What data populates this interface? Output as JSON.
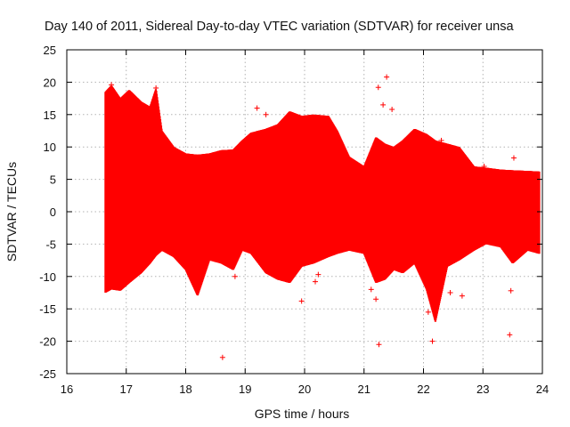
{
  "chart_data": {
    "type": "scatter",
    "title": "Day 140 of 2011, Sidereal Day-to-day VTEC variation (SDTVAR) for receiver unsa",
    "xlabel": "GPS time / hours",
    "ylabel": "SDTVAR / TECUs",
    "xlim": [
      16,
      24
    ],
    "ylim": [
      -25,
      25
    ],
    "x_ticks": [
      16,
      17,
      18,
      19,
      20,
      21,
      22,
      23,
      24
    ],
    "y_ticks": [
      -25,
      -20,
      -15,
      -10,
      -5,
      0,
      5,
      10,
      15,
      20,
      25
    ],
    "grid": true,
    "series_color": "#ff0000",
    "series": [
      {
        "name": "SDTVAR",
        "envelope": [
          [
            16.65,
            -12.5,
            18.5
          ],
          [
            16.75,
            -12.0,
            19.5
          ],
          [
            16.9,
            -12.2,
            17.5
          ],
          [
            17.05,
            -11.0,
            18.8
          ],
          [
            17.25,
            -9.5,
            17.0
          ],
          [
            17.4,
            -8.0,
            16.2
          ],
          [
            17.5,
            -6.8,
            19.0
          ],
          [
            17.6,
            -6.0,
            12.5
          ],
          [
            17.8,
            -7.0,
            10.0
          ],
          [
            18.0,
            -9.0,
            9.0
          ],
          [
            18.2,
            -13.0,
            8.8
          ],
          [
            18.4,
            -7.5,
            9.0
          ],
          [
            18.6,
            -8.0,
            9.5
          ],
          [
            18.8,
            -9.0,
            9.6
          ],
          [
            18.95,
            -6.0,
            11.0
          ],
          [
            19.1,
            -6.5,
            12.2
          ],
          [
            19.35,
            -9.5,
            12.8
          ],
          [
            19.55,
            -10.5,
            13.5
          ],
          [
            19.75,
            -11.0,
            15.5
          ],
          [
            19.95,
            -8.5,
            14.8
          ],
          [
            20.15,
            -8.0,
            15.0
          ],
          [
            20.4,
            -7.0,
            14.8
          ],
          [
            20.55,
            -6.5,
            12.5
          ],
          [
            20.75,
            -6.0,
            8.5
          ],
          [
            21.0,
            -6.5,
            7.0
          ],
          [
            21.2,
            -11.0,
            11.5
          ],
          [
            21.35,
            -10.5,
            10.5
          ],
          [
            21.5,
            -9.0,
            10.0
          ],
          [
            21.65,
            -9.5,
            11.0
          ],
          [
            21.85,
            -8.0,
            12.8
          ],
          [
            22.05,
            -12.0,
            12.0
          ],
          [
            22.2,
            -17.0,
            11.0
          ],
          [
            22.4,
            -8.5,
            10.5
          ],
          [
            22.6,
            -7.5,
            10.0
          ],
          [
            22.85,
            -6.0,
            7.0
          ],
          [
            23.05,
            -5.0,
            6.8
          ],
          [
            23.3,
            -5.5,
            6.5
          ],
          [
            23.5,
            -8.0,
            6.4
          ],
          [
            23.75,
            -6.0,
            6.3
          ],
          [
            23.95,
            -6.5,
            6.2
          ]
        ],
        "outlier_points": [
          [
            16.75,
            19.6
          ],
          [
            17.5,
            19.1
          ],
          [
            18.62,
            -22.5
          ],
          [
            18.83,
            -10.0
          ],
          [
            19.2,
            16.0
          ],
          [
            19.35,
            15.0
          ],
          [
            19.95,
            -13.8
          ],
          [
            20.18,
            -10.8
          ],
          [
            20.23,
            -9.7
          ],
          [
            21.12,
            -12.0
          ],
          [
            21.2,
            -13.5
          ],
          [
            21.25,
            -20.5
          ],
          [
            21.24,
            19.2
          ],
          [
            21.38,
            20.8
          ],
          [
            21.32,
            16.5
          ],
          [
            21.47,
            15.8
          ],
          [
            22.08,
            -15.5
          ],
          [
            22.15,
            -20.0
          ],
          [
            22.3,
            11.0
          ],
          [
            22.45,
            -12.5
          ],
          [
            22.65,
            -13.0
          ],
          [
            23.45,
            -19.0
          ],
          [
            23.52,
            8.3
          ],
          [
            23.47,
            -12.2
          ],
          [
            23.02,
            7.0
          ]
        ]
      }
    ]
  }
}
